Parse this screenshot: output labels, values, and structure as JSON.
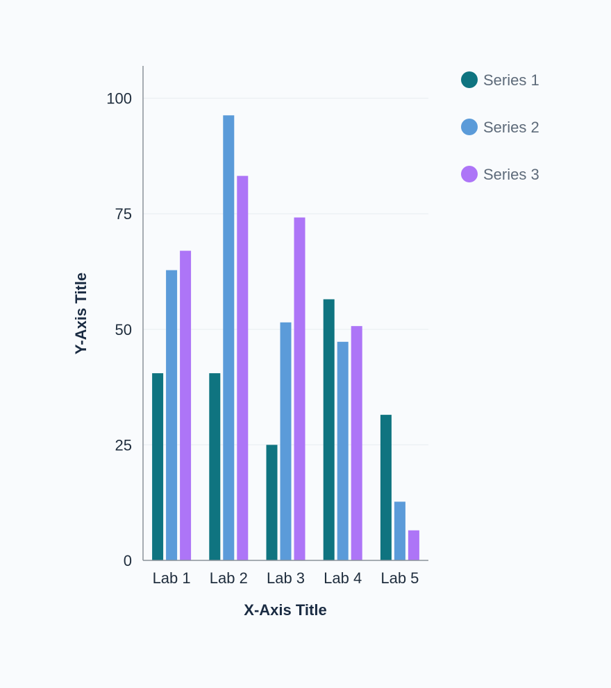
{
  "chart_data": {
    "type": "bar",
    "title": "",
    "xlabel": "X-Axis Title",
    "ylabel": "Y-Axis Title",
    "categories": [
      "Lab 1",
      "Lab 2",
      "Lab 3",
      "Lab 4",
      "Lab 5"
    ],
    "series": [
      {
        "name": "Series 1",
        "color": "#0f7480",
        "values": [
          40.5,
          40.5,
          25,
          56.5,
          31.5
        ]
      },
      {
        "name": "Series 2",
        "color": "#5b9bd9",
        "values": [
          62.8,
          96.3,
          51.5,
          47.3,
          12.7
        ]
      },
      {
        "name": "Series 3",
        "color": "#ad75f7",
        "values": [
          67,
          83.2,
          74.2,
          50.7,
          6.5
        ]
      }
    ],
    "ylim": [
      0,
      107
    ],
    "yticks": [
      0,
      25,
      50,
      75,
      100
    ],
    "grid": true,
    "legend": "top-right"
  }
}
